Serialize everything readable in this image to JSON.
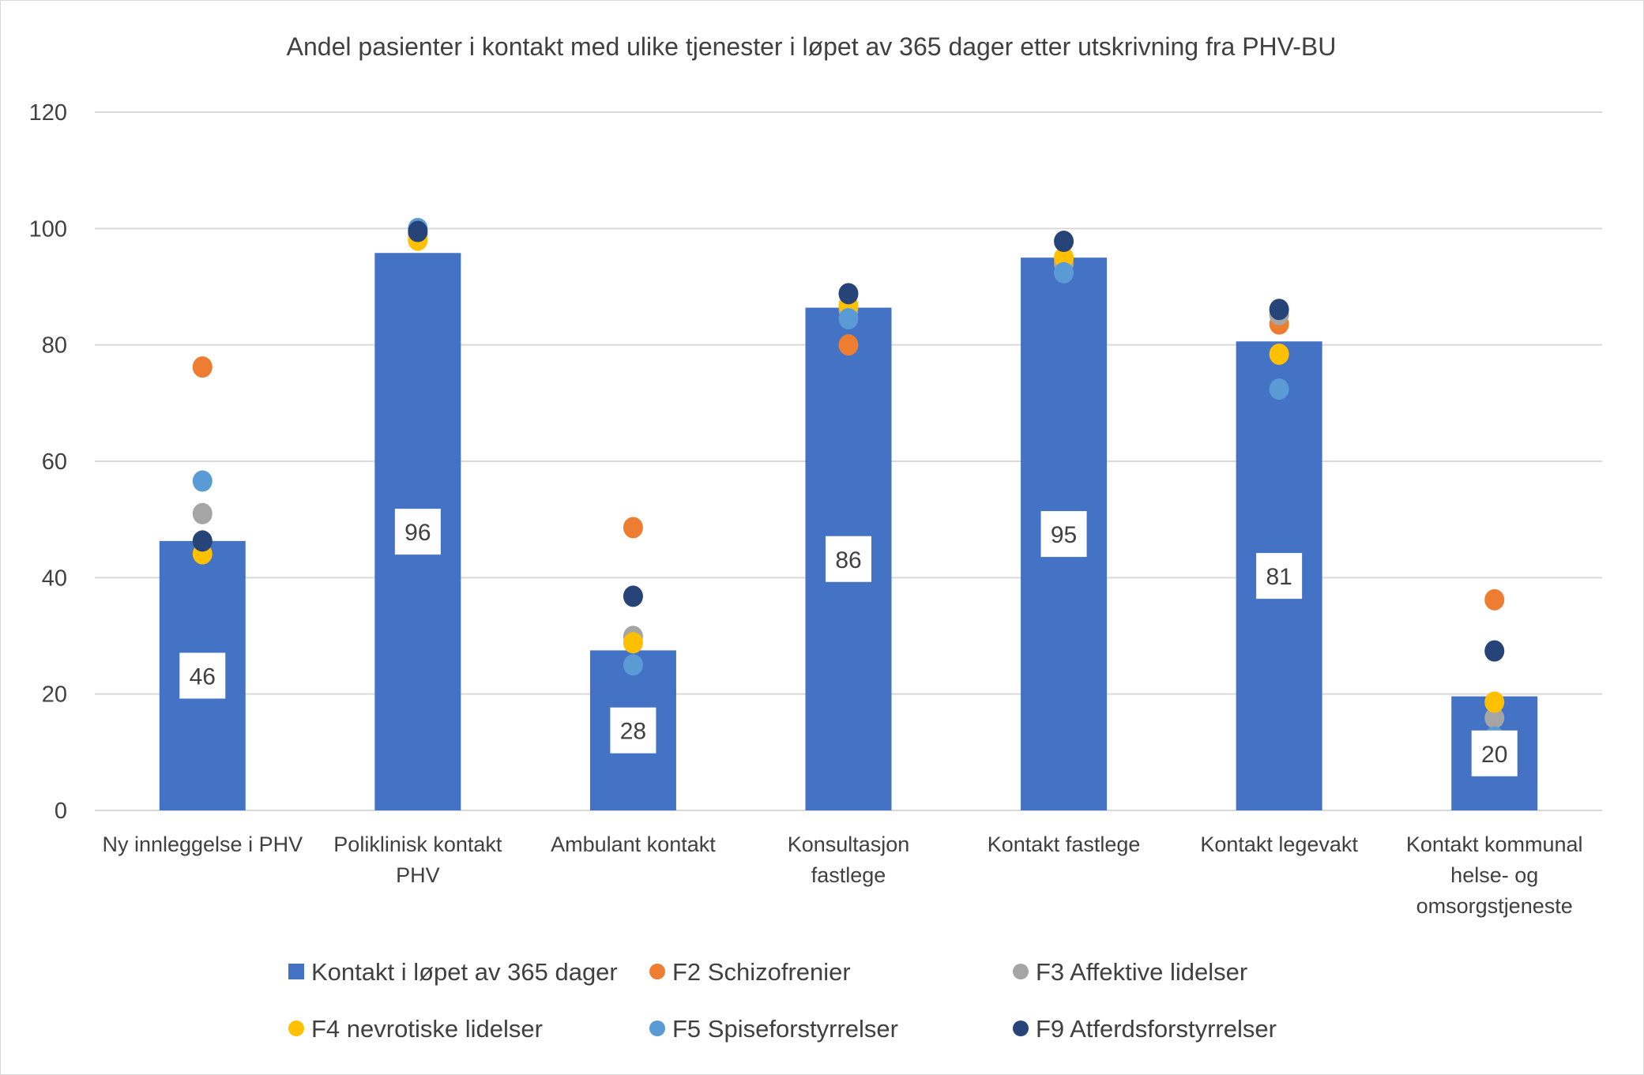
{
  "chart_data": {
    "type": "bar",
    "title": "Andel pasienter i kontakt med ulike tjenester i løpet av 365 dager etter utskrivning fra PHV-BU",
    "xlabel": "",
    "ylabel": "",
    "ylim": [
      0,
      120
    ],
    "yticks": [
      0,
      20,
      40,
      60,
      80,
      100,
      120
    ],
    "grid": true,
    "legend_position": "bottom",
    "categories": [
      [
        "Ny innleggelse i PHV"
      ],
      [
        "Poliklinisk kontakt",
        "PHV"
      ],
      [
        "Ambulant kontakt"
      ],
      [
        "Konsultasjon",
        "fastlege"
      ],
      [
        "Kontakt fastlege"
      ],
      [
        "Kontakt legevakt"
      ],
      [
        "Kontakt kommunal",
        "helse- og",
        "omsorgstjeneste"
      ]
    ],
    "bar_series": {
      "name": "Kontakt i løpet av 365 dager",
      "color": "#4472C4",
      "values": [
        46.3,
        95.8,
        27.5,
        86.4,
        95.0,
        80.6,
        19.6
      ],
      "data_labels": [
        "46",
        "96",
        "28",
        "86",
        "95",
        "81",
        "20"
      ]
    },
    "series": [
      {
        "name": "F2 Schizofrenier",
        "color": "#ED7D31",
        "type": "scatter",
        "values": [
          76.2,
          99,
          48.6,
          80.0,
          94,
          83.6,
          36.2
        ]
      },
      {
        "name": "F3 Affektive lidelser",
        "color": "#A5A5A5",
        "type": "scatter",
        "values": [
          51.0,
          99,
          29.9,
          86.0,
          94,
          85.2,
          15.9
        ]
      },
      {
        "name": "F4 nevrotiske lidelser",
        "color": "#FFC000",
        "type": "scatter",
        "values": [
          44.1,
          98.0,
          28.8,
          86.8,
          95.0,
          78.4,
          18.6
        ]
      },
      {
        "name": "F5 Spiseforstyrrelser",
        "color": "#5B9BD5",
        "type": "scatter",
        "values": [
          56.6,
          100.0,
          25.0,
          84.5,
          92.4,
          72.4,
          12.6
        ]
      },
      {
        "name": "F9 Atferdsforstyrrelser",
        "color": "#264478",
        "type": "scatter",
        "values": [
          46.3,
          99.5,
          36.8,
          88.8,
          97.8,
          86.1,
          27.4
        ]
      }
    ]
  }
}
